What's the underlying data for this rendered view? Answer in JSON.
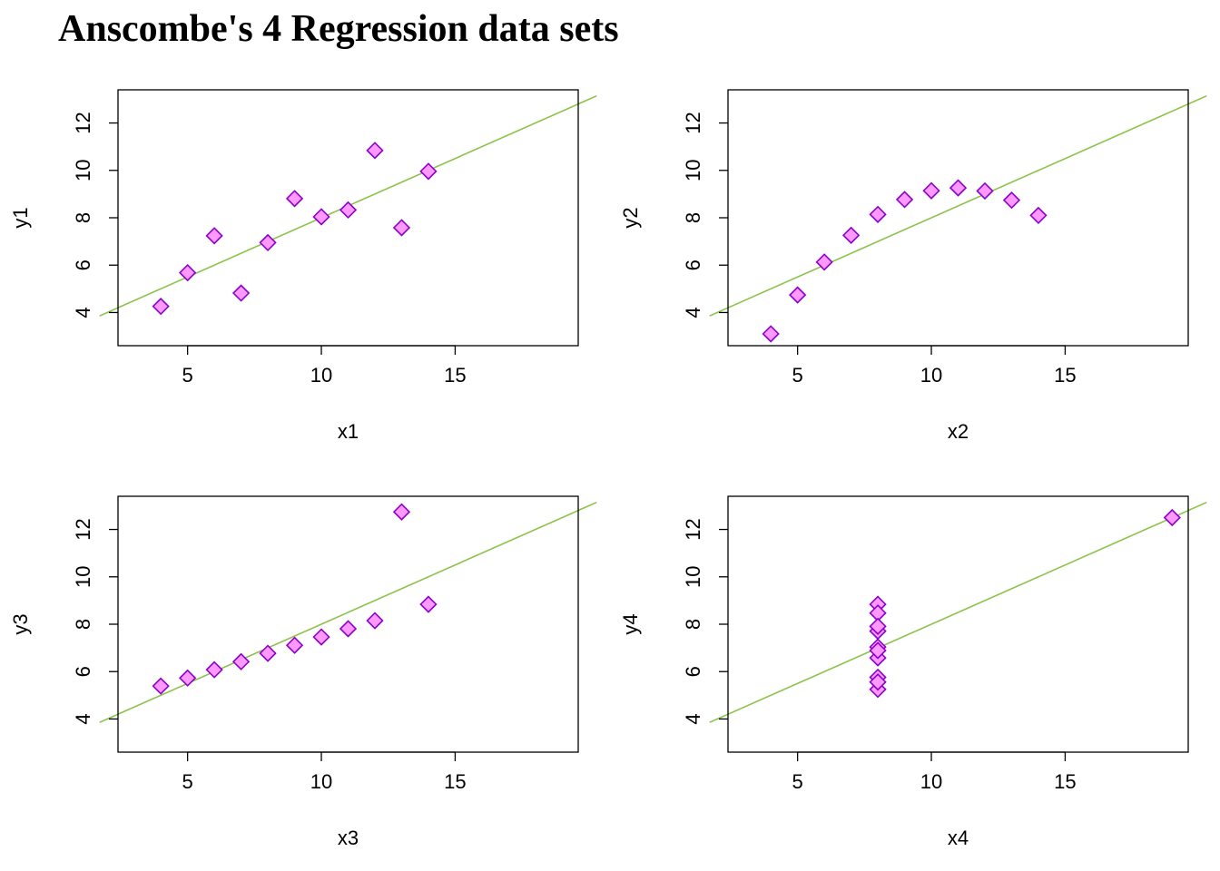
{
  "title": "Anscombe's 4 Regression data sets",
  "colors": {
    "point_fill": "#ff99ff",
    "point_stroke": "#8b00cc",
    "line": "#8bc34a",
    "axis": "#000000"
  },
  "chart_data": [
    {
      "type": "scatter",
      "xlabel": "x1",
      "ylabel": "y1",
      "xlim": [
        2.4,
        19.6
      ],
      "ylim": [
        2.6,
        13.4
      ],
      "xticks": [
        5,
        10,
        15
      ],
      "yticks": [
        4,
        6,
        8,
        10,
        12
      ],
      "x": [
        10,
        8,
        13,
        9,
        11,
        14,
        6,
        4,
        12,
        7,
        5
      ],
      "y": [
        8.04,
        6.95,
        7.58,
        8.81,
        8.33,
        9.96,
        7.24,
        4.26,
        10.84,
        4.82,
        5.68
      ],
      "fit": {
        "intercept": 3.0,
        "slope": 0.5
      },
      "grid": false
    },
    {
      "type": "scatter",
      "xlabel": "x2",
      "ylabel": "y2",
      "xlim": [
        2.4,
        19.6
      ],
      "ylim": [
        2.6,
        13.4
      ],
      "xticks": [
        5,
        10,
        15
      ],
      "yticks": [
        4,
        6,
        8,
        10,
        12
      ],
      "x": [
        10,
        8,
        13,
        9,
        11,
        14,
        6,
        4,
        12,
        7,
        5
      ],
      "y": [
        9.14,
        8.14,
        8.74,
        8.77,
        9.26,
        8.1,
        6.13,
        3.1,
        9.13,
        7.26,
        4.74
      ],
      "fit": {
        "intercept": 3.0,
        "slope": 0.5
      },
      "grid": false
    },
    {
      "type": "scatter",
      "xlabel": "x3",
      "ylabel": "y3",
      "xlim": [
        2.4,
        19.6
      ],
      "ylim": [
        2.6,
        13.4
      ],
      "xticks": [
        5,
        10,
        15
      ],
      "yticks": [
        4,
        6,
        8,
        10,
        12
      ],
      "x": [
        10,
        8,
        13,
        9,
        11,
        14,
        6,
        4,
        12,
        7,
        5
      ],
      "y": [
        7.46,
        6.77,
        12.74,
        7.11,
        7.81,
        8.84,
        6.08,
        5.39,
        8.15,
        6.42,
        5.73
      ],
      "fit": {
        "intercept": 3.0,
        "slope": 0.5
      },
      "grid": false
    },
    {
      "type": "scatter",
      "xlabel": "x4",
      "ylabel": "y4",
      "xlim": [
        2.4,
        19.6
      ],
      "ylim": [
        2.6,
        13.4
      ],
      "xticks": [
        5,
        10,
        15
      ],
      "yticks": [
        4,
        6,
        8,
        10,
        12
      ],
      "x": [
        8,
        8,
        8,
        8,
        8,
        8,
        8,
        19,
        8,
        8,
        8
      ],
      "y": [
        6.58,
        5.76,
        7.71,
        8.84,
        8.47,
        7.04,
        5.25,
        12.5,
        5.56,
        7.91,
        6.89
      ],
      "fit": {
        "intercept": 3.0,
        "slope": 0.5
      },
      "grid": false
    }
  ]
}
